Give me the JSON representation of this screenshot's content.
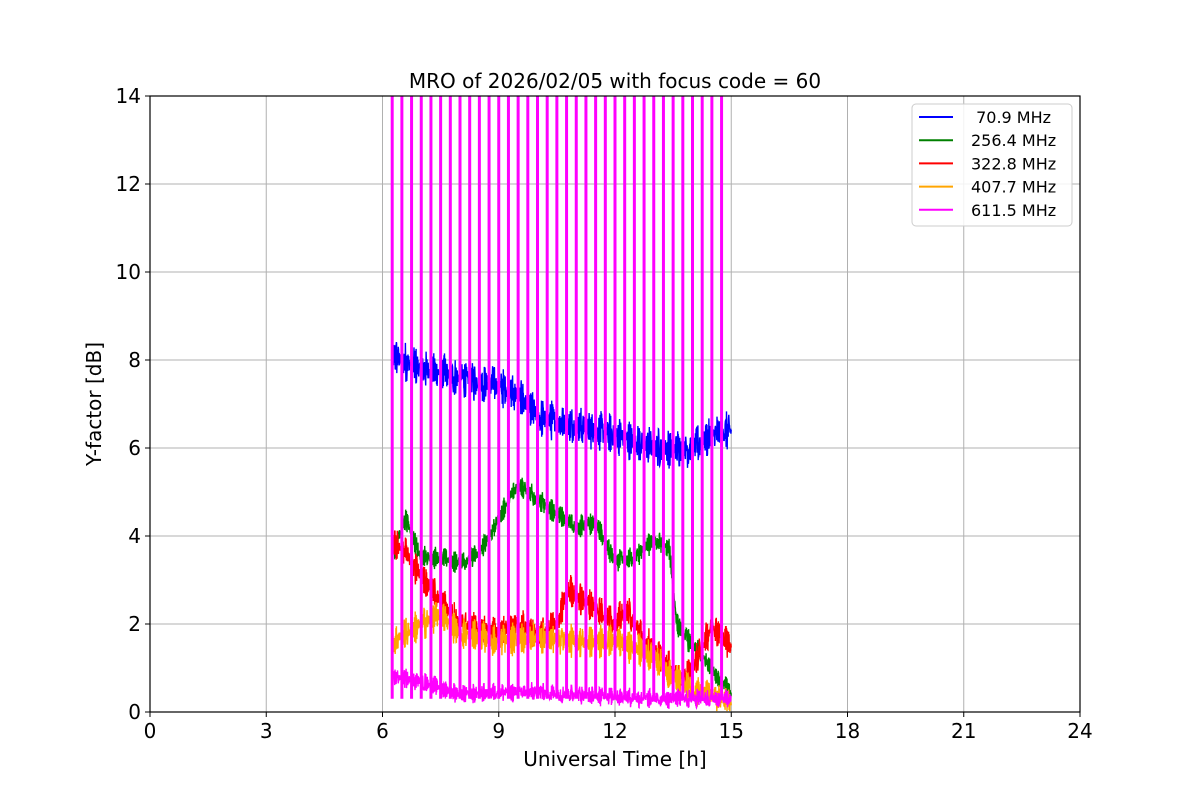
{
  "chart_data": {
    "type": "line",
    "title": "MRO of 2026/02/05 with focus code = 60",
    "xlabel": "Universal Time [h]",
    "ylabel": "Y-factor [dB]",
    "xlim": [
      0,
      24
    ],
    "ylim": [
      0,
      14
    ],
    "x_ticks": [
      0,
      3,
      6,
      9,
      12,
      15,
      18,
      21,
      24
    ],
    "y_ticks": [
      0,
      2,
      4,
      6,
      8,
      10,
      12,
      14
    ],
    "grid": true,
    "legend_position": "top-right",
    "series": [
      {
        "name": " 70.9 MHz",
        "color": "#0000ff",
        "noise": 0.6,
        "trend": [
          [
            6.25,
            8.1
          ],
          [
            7,
            7.8
          ],
          [
            8,
            7.6
          ],
          [
            9,
            7.4
          ],
          [
            9.5,
            7.2
          ],
          [
            10,
            6.7
          ],
          [
            11,
            6.5
          ],
          [
            12,
            6.3
          ],
          [
            13,
            6.0
          ],
          [
            14,
            6.0
          ],
          [
            14.5,
            6.3
          ],
          [
            15,
            6.4
          ]
        ]
      },
      {
        "name": "256.4 MHz",
        "color": "#008000",
        "noise": 0.35,
        "trend": [
          [
            6.25,
            3.6
          ],
          [
            6.6,
            4.4
          ],
          [
            7,
            3.5
          ],
          [
            7.5,
            3.5
          ],
          [
            8,
            3.4
          ],
          [
            8.5,
            3.6
          ],
          [
            9,
            4.4
          ],
          [
            9.5,
            5.2
          ],
          [
            10,
            4.8
          ],
          [
            10.5,
            4.5
          ],
          [
            11,
            4.2
          ],
          [
            11.5,
            4.3
          ],
          [
            12,
            3.4
          ],
          [
            12.5,
            3.5
          ],
          [
            13,
            3.9
          ],
          [
            13.4,
            3.7
          ],
          [
            13.6,
            2.0
          ],
          [
            14,
            1.5
          ],
          [
            14.5,
            1.0
          ],
          [
            15,
            0.4
          ]
        ]
      },
      {
        "name": "322.8 MHz",
        "color": "#ff0000",
        "noise": 0.5,
        "trend": [
          [
            6.25,
            3.9
          ],
          [
            6.5,
            3.7
          ],
          [
            7,
            3.1
          ],
          [
            7.5,
            2.5
          ],
          [
            8,
            2.0
          ],
          [
            9,
            1.8
          ],
          [
            9.5,
            2.0
          ],
          [
            10,
            1.7
          ],
          [
            10.5,
            2.0
          ],
          [
            10.8,
            2.8
          ],
          [
            11.2,
            2.5
          ],
          [
            11.5,
            2.4
          ],
          [
            12,
            2.0
          ],
          [
            12.3,
            2.3
          ],
          [
            12.8,
            1.6
          ],
          [
            13.2,
            1.2
          ],
          [
            13.7,
            0.7
          ],
          [
            14,
            1.0
          ],
          [
            14.5,
            2.0
          ],
          [
            15,
            1.5
          ]
        ]
      },
      {
        "name": "407.7 MHz",
        "color": "#ffa500",
        "noise": 0.5,
        "trend": [
          [
            6.25,
            1.6
          ],
          [
            7,
            2.0
          ],
          [
            7.5,
            2.2
          ],
          [
            8,
            1.8
          ],
          [
            9,
            1.6
          ],
          [
            10,
            1.7
          ],
          [
            11,
            1.6
          ],
          [
            12,
            1.6
          ],
          [
            13,
            1.3
          ],
          [
            13.5,
            0.8
          ],
          [
            14,
            0.5
          ],
          [
            15,
            0.2
          ]
        ]
      },
      {
        "name": "611.5 MHz",
        "color": "#ff00ff",
        "noise": 0.3,
        "trend": [
          [
            6.25,
            0.8
          ],
          [
            7,
            0.7
          ],
          [
            8,
            0.4
          ],
          [
            9,
            0.45
          ],
          [
            10,
            0.45
          ],
          [
            11,
            0.4
          ],
          [
            12,
            0.35
          ],
          [
            13,
            0.3
          ],
          [
            14,
            0.3
          ],
          [
            15,
            0.3
          ]
        ],
        "spikes": {
          "start": 6.25,
          "step": 0.25,
          "count": 35,
          "top": 14
        }
      }
    ]
  }
}
